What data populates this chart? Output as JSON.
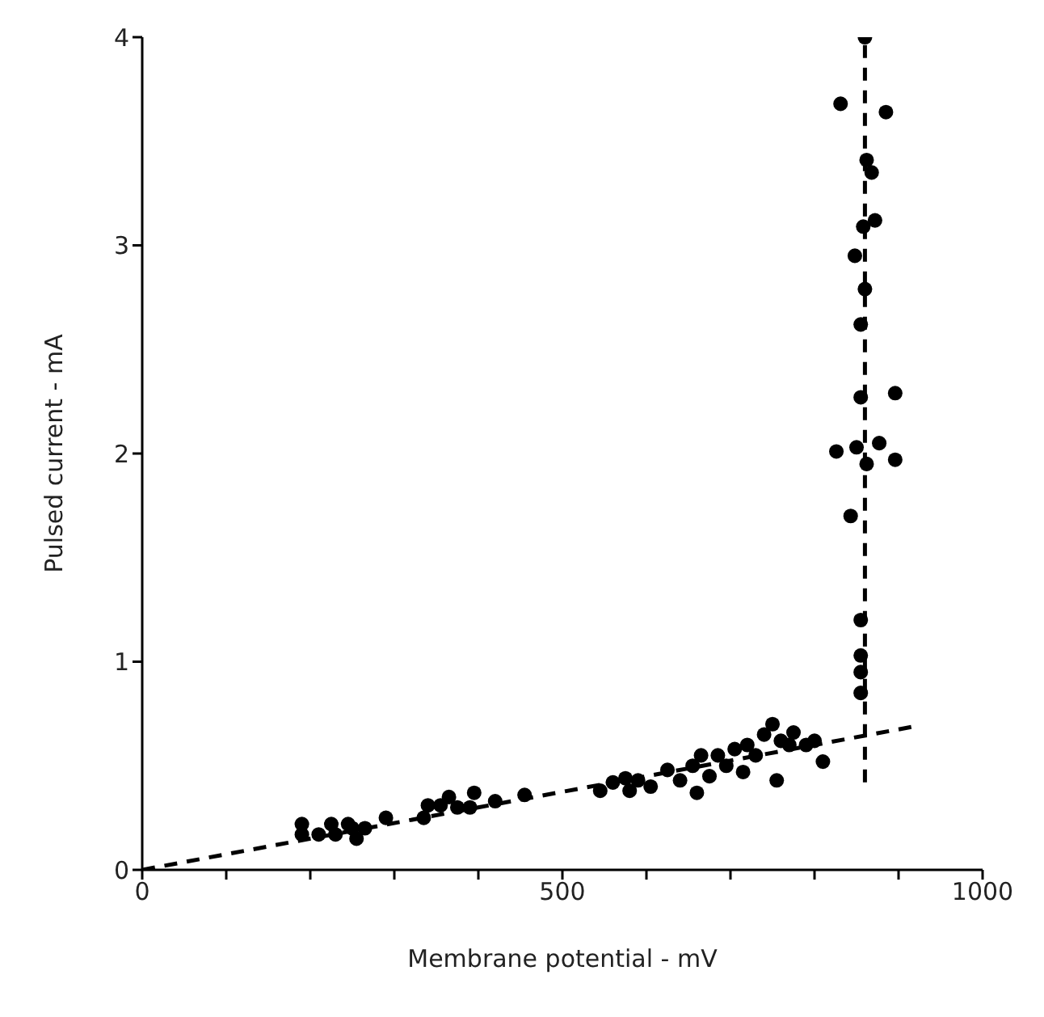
{
  "chart_data": {
    "type": "scatter",
    "xlabel": "Membrane potential - mV",
    "ylabel": "Pulsed current - mA",
    "xlim": [
      0,
      1000
    ],
    "ylim": [
      0,
      4
    ],
    "xticks": [
      0,
      {
        "value": 100,
        "label": null
      },
      {
        "value": 200,
        "label": null
      },
      {
        "value": 300,
        "label": null
      },
      {
        "value": 400,
        "label": null
      },
      500,
      {
        "value": 600,
        "label": null
      },
      {
        "value": 700,
        "label": null
      },
      {
        "value": 800,
        "label": null
      },
      {
        "value": 900,
        "label": null
      },
      1000
    ],
    "yticks": [
      0,
      1,
      2,
      3,
      4
    ],
    "grid": false,
    "marker": "circle",
    "series": [
      {
        "color": "#000000",
        "x": [
          190,
          190,
          210,
          225,
          230,
          245,
          250,
          255,
          265,
          290,
          335,
          340,
          355,
          365,
          375,
          390,
          395,
          420,
          455,
          545,
          560,
          575,
          580,
          590,
          605,
          625,
          640,
          655,
          660,
          665,
          675,
          685,
          695,
          705,
          715,
          720,
          730,
          740,
          750,
          755,
          760,
          770,
          775,
          790,
          800,
          810,
          831,
          885,
          860,
          862,
          868,
          872,
          858,
          848,
          860,
          855,
          896,
          826,
          855,
          877,
          850,
          862,
          896,
          843,
          855,
          855,
          855,
          855
        ],
        "values": [
          0.22,
          0.17,
          0.17,
          0.22,
          0.17,
          0.22,
          0.2,
          0.15,
          0.2,
          0.25,
          0.25,
          0.31,
          0.31,
          0.35,
          0.3,
          0.3,
          0.37,
          0.33,
          0.36,
          0.38,
          0.42,
          0.44,
          0.38,
          0.43,
          0.4,
          0.48,
          0.43,
          0.5,
          0.37,
          0.55,
          0.45,
          0.55,
          0.5,
          0.58,
          0.47,
          0.6,
          0.55,
          0.65,
          0.7,
          0.43,
          0.62,
          0.6,
          0.66,
          0.6,
          0.62,
          0.52,
          3.68,
          3.64,
          4.0,
          3.41,
          3.35,
          3.12,
          3.09,
          2.95,
          2.79,
          2.62,
          2.29,
          2.01,
          2.27,
          2.05,
          2.03,
          1.95,
          1.97,
          1.7,
          1.2,
          1.03,
          0.95,
          0.85
        ]
      },
      {
        "type": "line",
        "color": "#000000",
        "line_style": "dashed",
        "marker": "none",
        "x": [
          0,
          920
        ],
        "values": [
          0,
          0.69
        ]
      },
      {
        "type": "line",
        "color": "#000000",
        "line_style": "dashed",
        "marker": "none",
        "x": [
          860,
          860
        ],
        "values": [
          0.42,
          4.0
        ]
      }
    ]
  }
}
